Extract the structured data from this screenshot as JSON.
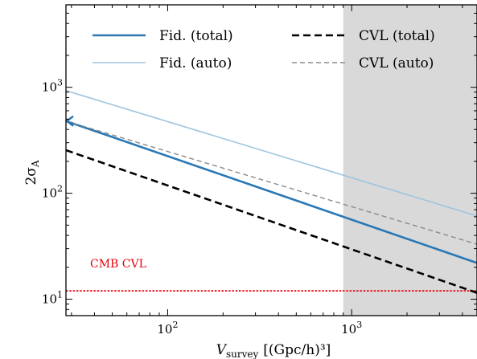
{
  "chart_data": {
    "type": "line",
    "xscale": "log",
    "yscale": "log",
    "xlim": [
      28,
      4800
    ],
    "ylim": [
      7,
      6000
    ],
    "xlabel": {
      "main": "V",
      "sub": "survey",
      "units": "[(Gpc/h)³]"
    },
    "ylabel": {
      "main": "2σ",
      "sub": "A"
    },
    "x_ticks": [
      {
        "value": 100,
        "base": "10",
        "exp": "2"
      },
      {
        "value": 1000,
        "base": "10",
        "exp": "3"
      }
    ],
    "y_ticks": [
      {
        "value": 10,
        "base": "10",
        "exp": "1"
      },
      {
        "value": 100,
        "base": "10",
        "exp": "2"
      },
      {
        "value": 1000,
        "base": "10",
        "exp": "3"
      }
    ],
    "shaded_region": {
      "x_from": 900,
      "x_to": 4800,
      "color": "#d9d9d9"
    },
    "series": [
      {
        "name": "Fid. (total)",
        "color": "#2a78b5",
        "width": 2.6,
        "dash": "",
        "x": [
          28,
          4800
        ],
        "y": [
          480,
          22
        ],
        "start_arrow": true
      },
      {
        "name": "Fid. (auto)",
        "color": "#9ec5de",
        "width": 1.6,
        "dash": "",
        "x": [
          28,
          4800
        ],
        "y": [
          930,
          61
        ]
      },
      {
        "name": "CVL (total)",
        "color": "#000000",
        "width": 2.6,
        "dash": "9,5",
        "x": [
          28,
          4800
        ],
        "y": [
          255,
          11.5
        ]
      },
      {
        "name": "CVL (auto)",
        "color": "#8c8c8c",
        "width": 1.5,
        "dash": "6,4",
        "x": [
          28,
          4800
        ],
        "y": [
          480,
          33
        ]
      }
    ],
    "hline": {
      "y": 12,
      "color": "#e8000b",
      "label": "CMB CVL"
    },
    "legend": {
      "placement": "top",
      "columns": 2
    }
  }
}
